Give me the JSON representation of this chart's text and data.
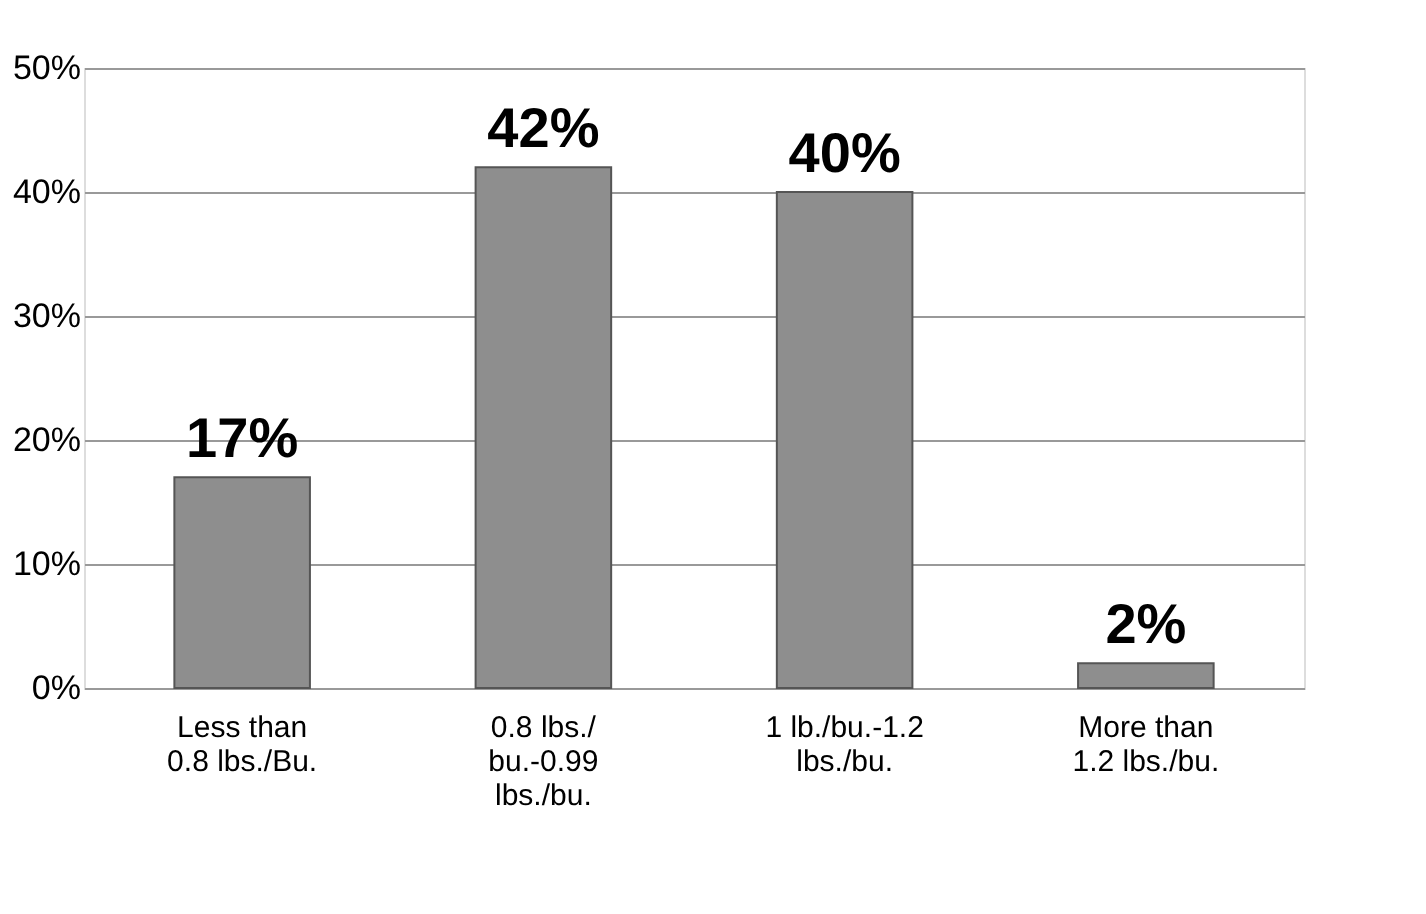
{
  "chart_data": {
    "type": "bar",
    "categories": [
      "Less than\n0.8 lbs./Bu.",
      "0.8 lbs./\nbu.-0.99\nlbs./bu.",
      "1 lb./bu.-1.2\nlbs./bu.",
      "More than\n1.2 lbs./bu."
    ],
    "values": [
      17,
      42,
      40,
      2
    ],
    "value_labels": [
      "17%",
      "42%",
      "40%",
      "2%"
    ],
    "color": "#8e8e8e",
    "ylim": [
      0,
      50
    ],
    "yticks": [
      {
        "value": 0,
        "label": "0%"
      },
      {
        "value": 10,
        "label": "10%"
      },
      {
        "value": 20,
        "label": "20%"
      },
      {
        "value": 30,
        "label": "30%"
      },
      {
        "value": 40,
        "label": "40%"
      },
      {
        "value": 50,
        "label": "50%"
      }
    ],
    "grid": "y"
  }
}
